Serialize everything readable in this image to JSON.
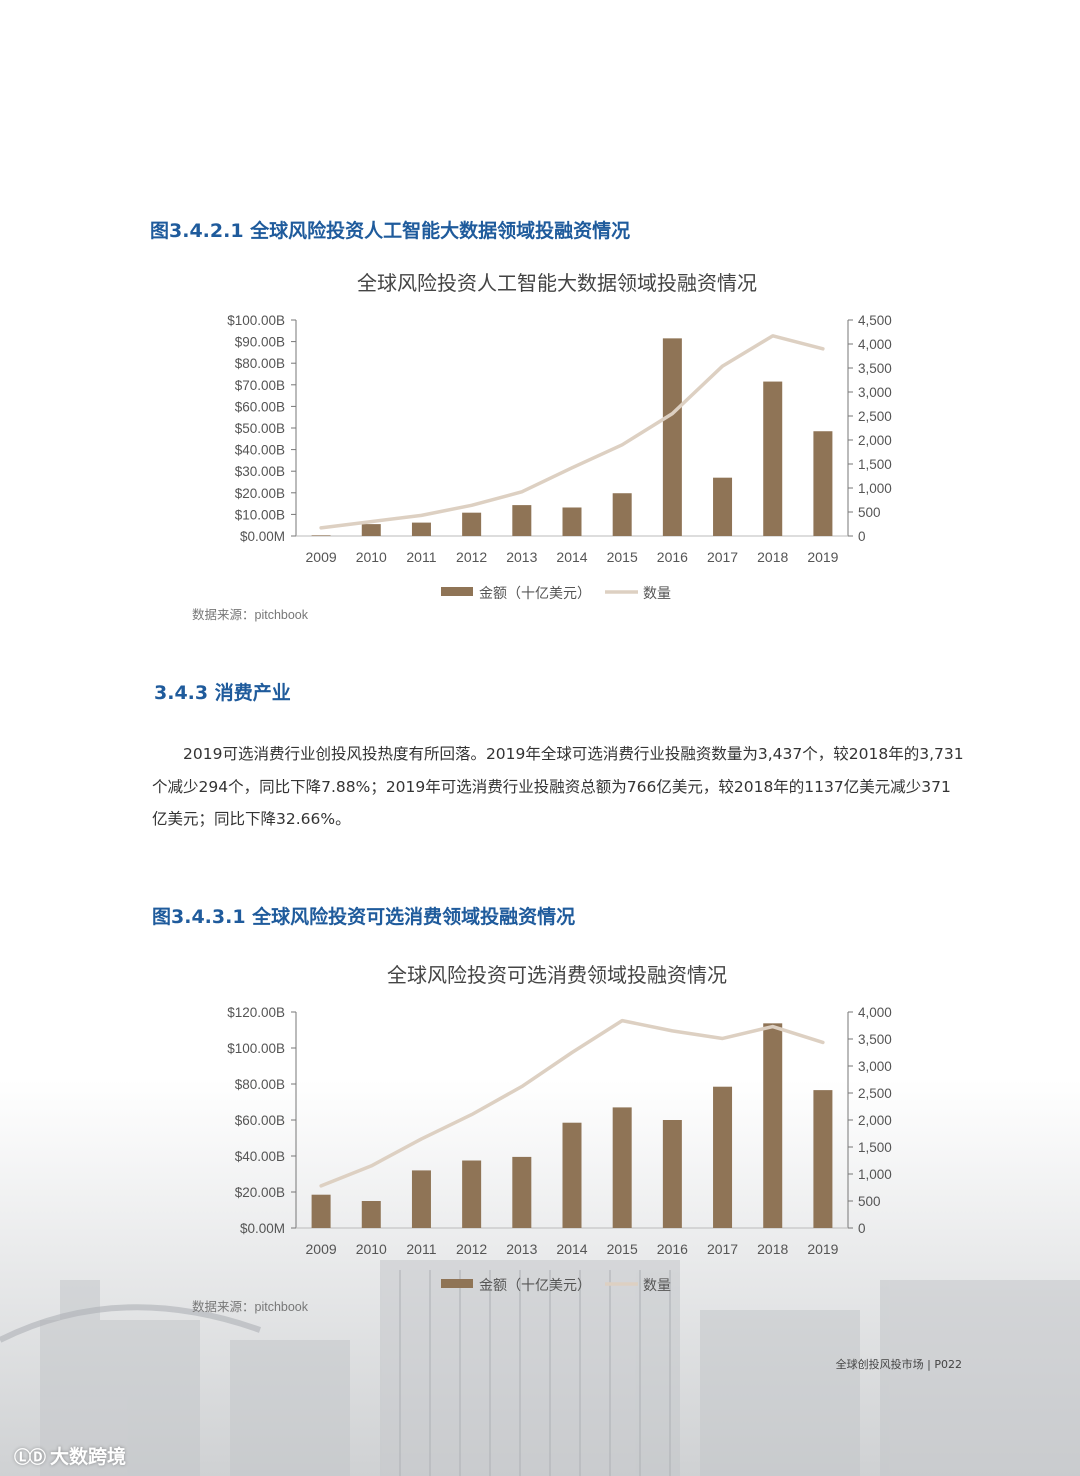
{
  "figures": [
    {
      "caption": "图3.4.2.1 全球风险投资人工智能大数据领域投融资情况",
      "source": "数据来源：pitchbook"
    },
    {
      "caption": "图3.4.3.1 全球风险投资可选消费领域投融资情况",
      "source": "数据来源：pitchbook"
    }
  ],
  "section": {
    "title": "3.4.3 消费产业",
    "paragraph": "2019可选消费行业创投风投热度有所回落。2019年全球可选消费行业投融资数量为3,437个，较2018年的3,731个减少294个，同比下降7.88%；2019年可选消费行业投融资总额为766亿美元，较2018年的1137亿美元减少371亿美元；同比下降32.66%。"
  },
  "footer": {
    "page_label": "全球创投风投市场 | P022"
  },
  "watermark": {
    "text": "大数跨境"
  },
  "colors": {
    "bar": "#8f7456",
    "line": "#ddd0c2",
    "caption": "#1f5b9c",
    "axis": "#777777"
  },
  "chart_data": [
    {
      "type": "bar",
      "title": "全球风险投资人工智能大数据领域投融资情况",
      "categories": [
        "2009",
        "2010",
        "2011",
        "2012",
        "2013",
        "2014",
        "2015",
        "2016",
        "2017",
        "2018",
        "2019"
      ],
      "y_left_ticks": [
        "$0.00M",
        "$10.00B",
        "$20.00B",
        "$30.00B",
        "$40.00B",
        "$50.00B",
        "$60.00B",
        "$70.00B",
        "$80.00B",
        "$90.00B",
        "$100.00B"
      ],
      "y_right_ticks": [
        "0",
        "500",
        "1,000",
        "1,500",
        "2,000",
        "2,500",
        "3,000",
        "3,500",
        "4,000",
        "4,500"
      ],
      "ylim_left": [
        0,
        100
      ],
      "ylim_right": [
        0,
        4500
      ],
      "series": [
        {
          "name": "金额（十亿美元）",
          "type": "bar",
          "axis": "left",
          "values": [
            0.3,
            5.5,
            6.2,
            10.8,
            14.3,
            13.2,
            19.8,
            91.5,
            27.0,
            71.5,
            48.5
          ]
        },
        {
          "name": "数量",
          "type": "line",
          "axis": "right",
          "values": [
            170,
            300,
            430,
            640,
            920,
            1420,
            1900,
            2550,
            3540,
            4170,
            3900
          ]
        }
      ],
      "legend_position": "bottom"
    },
    {
      "type": "bar",
      "title": "全球风险投资可选消费领域投融资情况",
      "categories": [
        "2009",
        "2010",
        "2011",
        "2012",
        "2013",
        "2014",
        "2015",
        "2016",
        "2017",
        "2018",
        "2019"
      ],
      "y_left_ticks": [
        "$0.00M",
        "$20.00B",
        "$40.00B",
        "$60.00B",
        "$80.00B",
        "$100.00B",
        "$120.00B"
      ],
      "y_right_ticks": [
        "0",
        "500",
        "1,000",
        "1,500",
        "2,000",
        "2,500",
        "3,000",
        "3,500",
        "4,000"
      ],
      "ylim_left": [
        0,
        120
      ],
      "ylim_right": [
        0,
        4000
      ],
      "series": [
        {
          "name": "金额（十亿美元）",
          "type": "bar",
          "axis": "left",
          "values": [
            18.5,
            15.0,
            32.0,
            37.5,
            39.5,
            58.5,
            67.0,
            60.0,
            78.5,
            113.7,
            76.6
          ]
        },
        {
          "name": "数量",
          "type": "line",
          "axis": "right",
          "values": [
            780,
            1150,
            1650,
            2100,
            2620,
            3250,
            3840,
            3650,
            3510,
            3731,
            3437
          ]
        }
      ],
      "legend_position": "bottom"
    }
  ]
}
